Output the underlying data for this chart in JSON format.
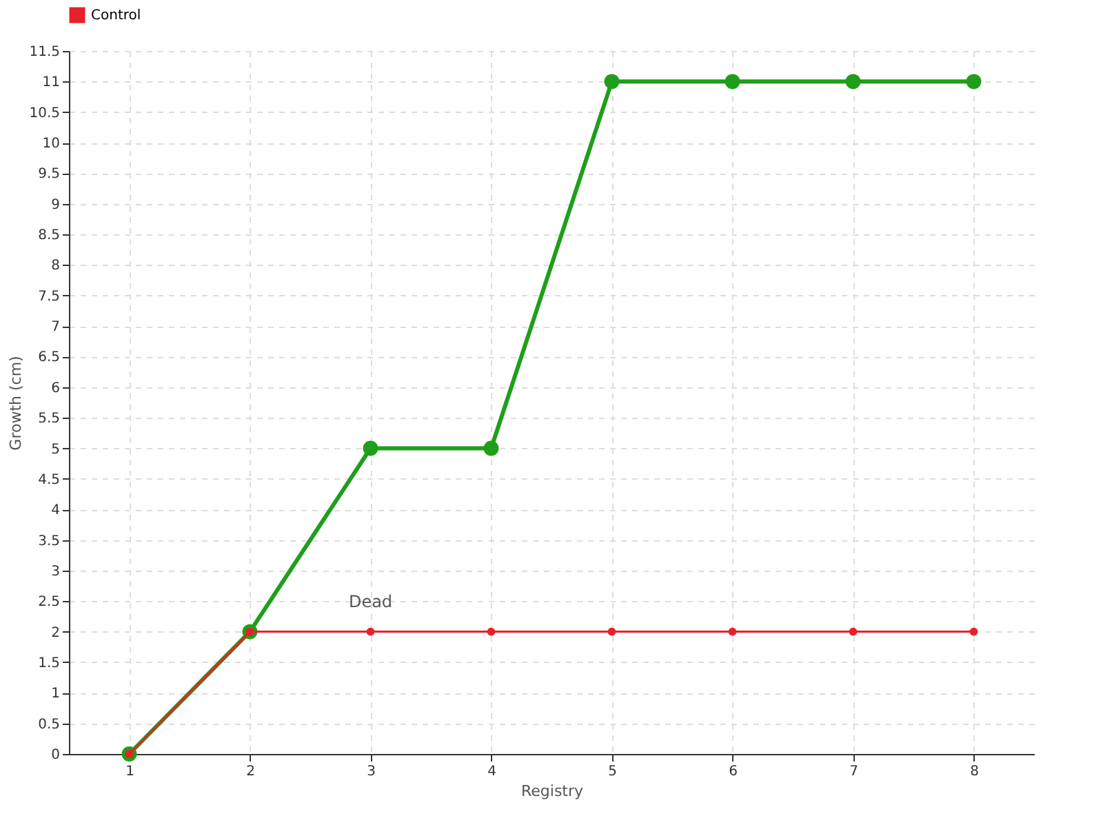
{
  "chart_data": {
    "type": "line",
    "xlabel": "Registry",
    "ylabel": "Growth (cm)",
    "categories": [
      "1",
      "2",
      "3",
      "4",
      "5",
      "6",
      "7",
      "8"
    ],
    "series": [
      {
        "color": "#1f9e1a",
        "values": [
          0,
          2,
          5,
          5,
          11,
          11,
          11,
          11
        ]
      },
      {
        "name": "Control",
        "color": "#e8202a",
        "values": [
          0,
          2,
          2,
          2,
          2,
          2,
          2,
          2
        ]
      }
    ],
    "ylim": [
      0,
      11.5
    ],
    "yticks": [
      0,
      0.5,
      1,
      1.5,
      2,
      2.5,
      3,
      3.5,
      4,
      4.5,
      5,
      5.5,
      6,
      6.5,
      7,
      7.5,
      8,
      8.5,
      9,
      9.5,
      10,
      10.5,
      11,
      11.5
    ],
    "annotations": [
      {
        "text": "Dead",
        "x": "3",
        "y": 2
      }
    ],
    "grid": true,
    "legend": "top left",
    "marker": "circle",
    "line_style": "solid"
  }
}
